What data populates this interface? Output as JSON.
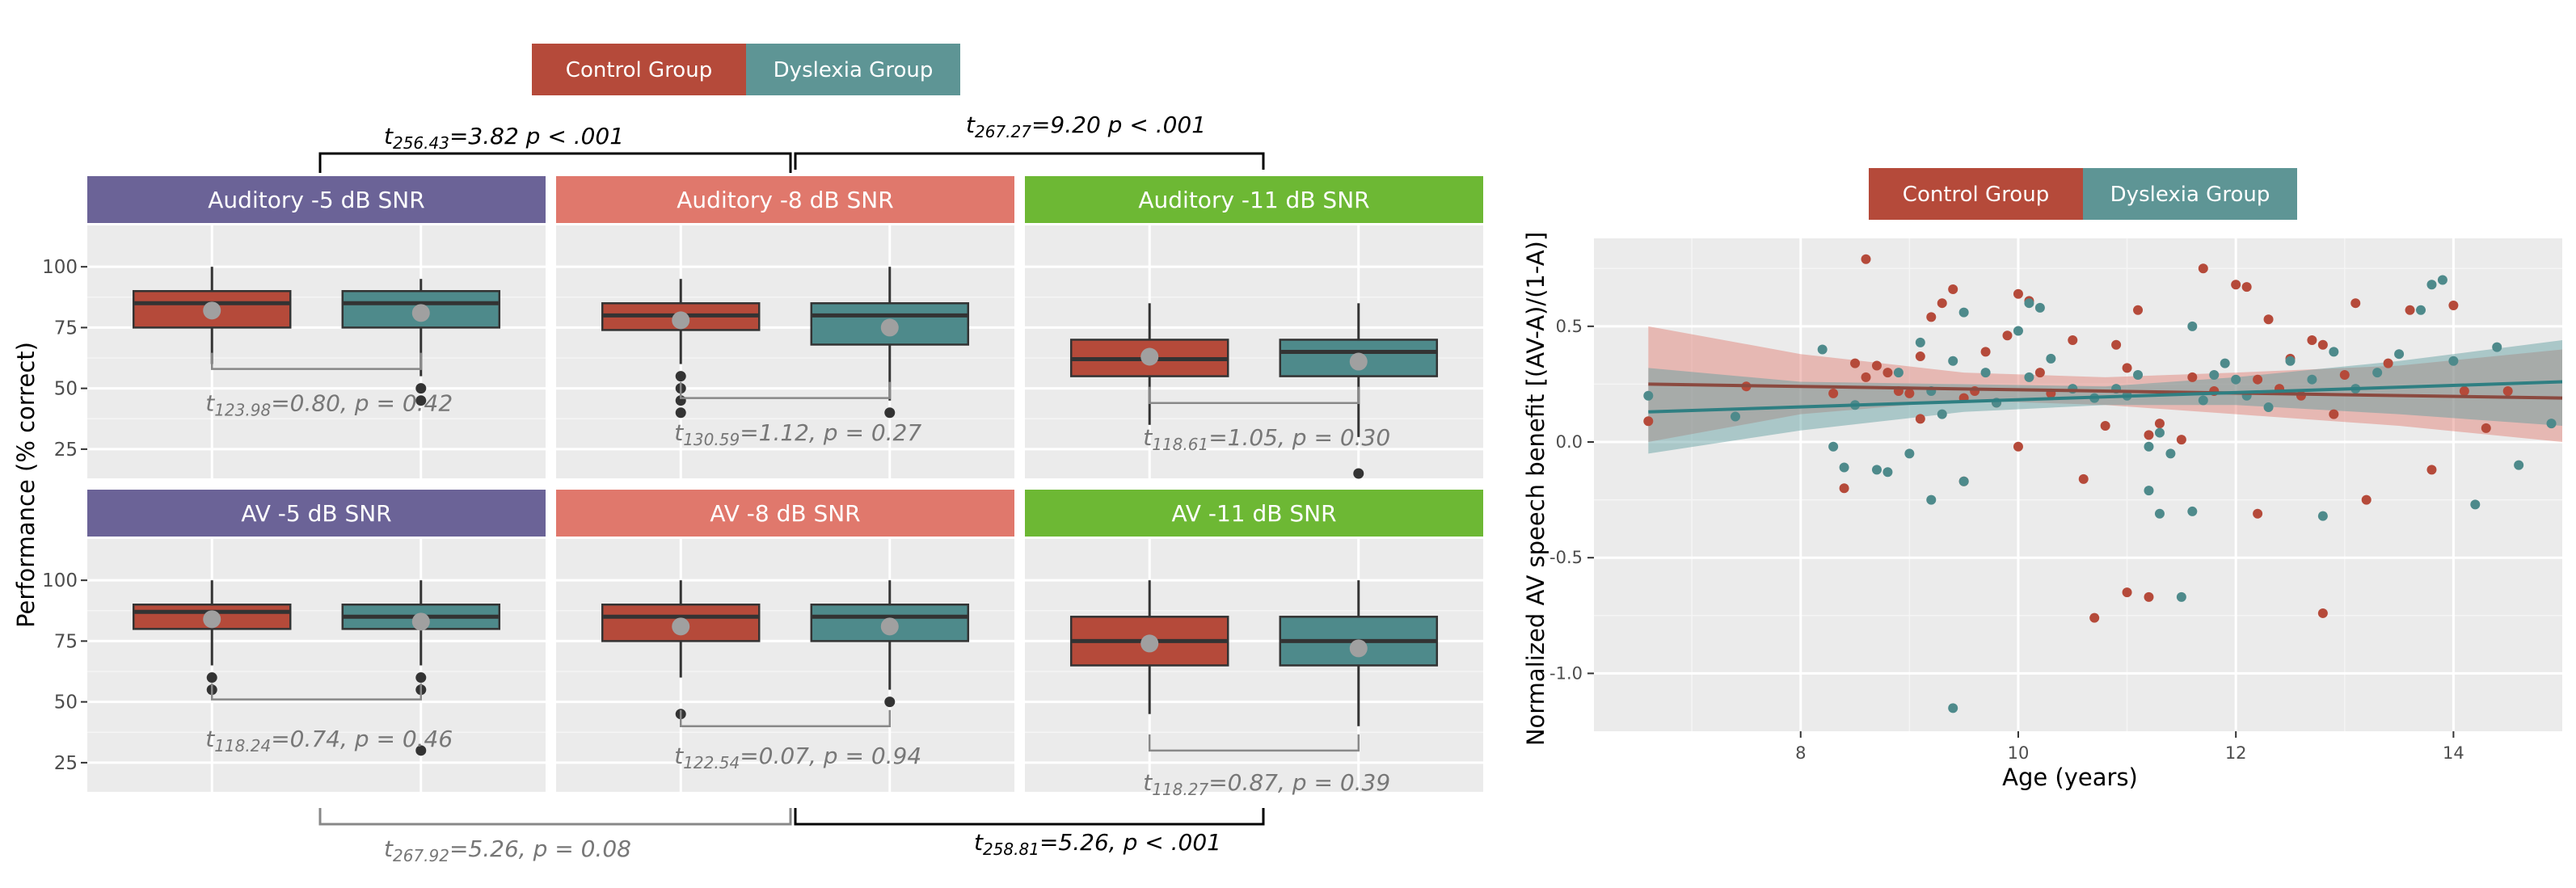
{
  "legend": {
    "left": {
      "items": [
        {
          "label": "Control Group",
          "color": "#b54a3a"
        },
        {
          "label": "Dyslexia Group",
          "color": "#5e9595"
        }
      ]
    },
    "right": {
      "items": [
        {
          "label": "Control Group",
          "color": "#b54a3a"
        },
        {
          "label": "Dyslexia Group",
          "color": "#5e9595"
        }
      ]
    }
  },
  "colors": {
    "control_box": "#b54a3a",
    "dyslexia_box": "#4e8a8b",
    "panel_bg": "#ebebeb",
    "grid": "#ffffff",
    "mean_marker": "#a0a0a0",
    "auditory5": "#6b6397",
    "auditory8": "#e0786c",
    "auditory11": "#6db834"
  },
  "chart_data": [
    {
      "type": "box",
      "ylabel": "Performance (% correct)",
      "ylim": [
        13,
        117
      ],
      "yticks": [
        25,
        50,
        75,
        100
      ],
      "panels": [
        {
          "strip": "Auditory -5 dB SNR",
          "color": "#6b6397",
          "row": 0,
          "col": 0,
          "groups": [
            {
              "group": "Control Group",
              "q1": 75,
              "median": 85,
              "q3": 90,
              "lower": 60,
              "upper": 100,
              "mean": 82,
              "outliers": []
            },
            {
              "group": "Dyslexia Group",
              "q1": 75,
              "median": 85,
              "q3": 90,
              "lower": 55,
              "upper": 95,
              "mean": 81,
              "outliers": [
                50,
                45
              ]
            }
          ]
        },
        {
          "strip": "Auditory -8 dB SNR",
          "color": "#e0786c",
          "row": 0,
          "col": 1,
          "groups": [
            {
              "group": "Control Group",
              "q1": 74,
              "median": 80,
              "q3": 85,
              "lower": 60,
              "upper": 95,
              "mean": 78,
              "outliers": [
                55,
                50,
                45,
                40
              ]
            },
            {
              "group": "Dyslexia Group",
              "q1": 68,
              "median": 80,
              "q3": 85,
              "lower": 45,
              "upper": 100,
              "mean": 75,
              "outliers": [
                40
              ]
            }
          ]
        },
        {
          "strip": "Auditory -11 dB SNR",
          "color": "#6db834",
          "row": 0,
          "col": 2,
          "groups": [
            {
              "group": "Control Group",
              "q1": 55,
              "median": 62,
              "q3": 70,
              "lower": 35,
              "upper": 85,
              "mean": 63,
              "outliers": []
            },
            {
              "group": "Dyslexia Group",
              "q1": 55,
              "median": 65,
              "q3": 70,
              "lower": 30,
              "upper": 85,
              "mean": 61,
              "outliers": [
                15
              ]
            }
          ]
        },
        {
          "strip": "AV  -5 dB SNR",
          "color": "#6b6397",
          "row": 1,
          "col": 0,
          "groups": [
            {
              "group": "Control Group",
              "q1": 80,
              "median": 87,
              "q3": 90,
              "lower": 65,
              "upper": 100,
              "mean": 84,
              "outliers": [
                60,
                55
              ]
            },
            {
              "group": "Dyslexia Group",
              "q1": 80,
              "median": 85,
              "q3": 90,
              "lower": 65,
              "upper": 100,
              "mean": 83,
              "outliers": [
                60,
                55,
                30
              ]
            }
          ]
        },
        {
          "strip": "AV  -8 dB SNR",
          "color": "#e0786c",
          "row": 1,
          "col": 1,
          "groups": [
            {
              "group": "Control Group",
              "q1": 75,
              "median": 85,
              "q3": 90,
              "lower": 60,
              "upper": 100,
              "mean": 81,
              "outliers": [
                45
              ]
            },
            {
              "group": "Dyslexia Group",
              "q1": 75,
              "median": 85,
              "q3": 90,
              "lower": 55,
              "upper": 100,
              "mean": 81,
              "outliers": [
                50
              ]
            }
          ]
        },
        {
          "strip": "AV  -11 dB SNR",
          "color": "#6db834",
          "row": 1,
          "col": 2,
          "groups": [
            {
              "group": "Control Group",
              "q1": 65,
              "median": 75,
              "q3": 85,
              "lower": 45,
              "upper": 100,
              "mean": 74,
              "outliers": []
            },
            {
              "group": "Dyslexia Group",
              "q1": 65,
              "median": 75,
              "q3": 85,
              "lower": 40,
              "upper": 100,
              "mean": 72,
              "outliers": []
            }
          ]
        }
      ],
      "annotations": [
        {
          "sub": "123.98",
          "text": "=0.80, p = 0.42",
          "style": "gray",
          "panel": 0,
          "y": 44,
          "bracket_y": 58
        },
        {
          "sub": "130.59",
          "text": "=1.12, p = 0.27",
          "style": "gray",
          "panel": 1,
          "y": 32,
          "bracket_y": 46
        },
        {
          "sub": "118.61",
          "text": "=1.05, p = 0.30",
          "style": "gray",
          "panel": 2,
          "y": 30,
          "bracket_y": 44
        },
        {
          "sub": "118.24",
          "text": "=0.74, p = 0.46",
          "style": "gray",
          "panel": 3,
          "y": 35,
          "bracket_y": 51
        },
        {
          "sub": "122.54",
          "text": "=0.07, p = 0.94",
          "style": "gray",
          "panel": 4,
          "y": 28,
          "bracket_y": 40
        },
        {
          "sub": "118.27",
          "text": "=0.87, p = 0.39",
          "style": "gray",
          "panel": 5,
          "y": 17,
          "bracket_y": 30
        }
      ],
      "comparisons": [
        {
          "sub": "256.43",
          "text": "=3.82 p < .001",
          "style": "black",
          "position": "top",
          "between": [
            0,
            1
          ]
        },
        {
          "sub": "267.27",
          "text": "=9.20 p < .001",
          "style": "black",
          "position": "top",
          "between": [
            1,
            2
          ]
        },
        {
          "sub": "267.92",
          "text": "=5.26, p = 0.08",
          "style": "gray",
          "position": "bottom",
          "between": [
            0,
            1
          ]
        },
        {
          "sub": "258.81",
          "text": "=5.26, p < .001",
          "style": "black",
          "position": "bottom",
          "between": [
            1,
            2
          ]
        }
      ]
    },
    {
      "type": "scatter",
      "xlabel": "Age (years)",
      "ylabel": "Normalized AV speech benefit [(AV-A)/(1-A)]",
      "xlim": [
        6.1,
        15.0
      ],
      "ylim": [
        -1.25,
        0.88
      ],
      "xticks": [
        8,
        10,
        12,
        14
      ],
      "yticks": [
        -1.0,
        -0.5,
        0.0,
        0.5
      ],
      "series": [
        {
          "name": "Control Group",
          "color": "#b54a3a",
          "fit": {
            "x": [
              6.6,
              15.0
            ],
            "y": [
              0.25,
              0.19
            ]
          },
          "band": {
            "x": [
              6.6,
              8.0,
              9.5,
              10.8,
              12.0,
              13.5,
              15.0
            ],
            "lower": [
              0.0,
              0.12,
              0.18,
              0.16,
              0.12,
              0.07,
              0.0
            ],
            "upper": [
              0.5,
              0.38,
              0.3,
              0.28,
              0.3,
              0.33,
              0.4
            ]
          },
          "x": [
            6.6,
            7.5,
            8.3,
            8.4,
            8.5,
            8.6,
            8.6,
            8.7,
            8.8,
            8.9,
            9.0,
            9.1,
            9.1,
            9.2,
            9.3,
            9.4,
            9.5,
            9.5,
            9.6,
            9.7,
            9.8,
            9.9,
            10.0,
            10.0,
            10.1,
            10.2,
            10.3,
            10.5,
            10.6,
            10.7,
            10.8,
            10.9,
            11.0,
            11.0,
            11.1,
            11.2,
            11.2,
            11.3,
            11.5,
            11.6,
            11.7,
            11.8,
            12.0,
            12.1,
            12.2,
            12.2,
            12.3,
            12.4,
            12.5,
            12.6,
            12.7,
            12.8,
            12.8,
            12.9,
            13.0,
            13.1,
            13.2,
            13.4,
            13.6,
            13.8,
            14.0,
            14.1,
            14.3,
            14.5
          ],
          "y": [
            0.09,
            0.24,
            0.21,
            -0.2,
            0.34,
            0.28,
            0.79,
            0.33,
            0.3,
            0.22,
            0.21,
            0.37,
            0.1,
            0.54,
            0.6,
            0.66,
            -0.17,
            0.19,
            0.22,
            0.39,
            0.17,
            0.46,
            0.64,
            -0.02,
            0.61,
            0.3,
            0.21,
            0.44,
            -0.16,
            -0.76,
            0.07,
            0.42,
            -0.65,
            0.32,
            0.57,
            0.03,
            -0.67,
            0.08,
            0.01,
            0.28,
            0.75,
            0.22,
            0.68,
            0.67,
            0.27,
            -0.31,
            0.53,
            0.23,
            0.36,
            0.2,
            0.44,
            0.42,
            -0.74,
            0.12,
            0.29,
            0.6,
            -0.25,
            0.34,
            0.57,
            -0.12,
            0.59,
            0.22,
            0.06,
            0.22
          ]
        },
        {
          "name": "Dyslexia Group",
          "color": "#4e8a8b",
          "fit": {
            "x": [
              6.6,
              15.0
            ],
            "y": [
              0.13,
              0.26
            ]
          },
          "band": {
            "x": [
              6.6,
              8.0,
              9.5,
              10.8,
              12.0,
              13.5,
              15.0
            ],
            "lower": [
              -0.05,
              0.05,
              0.13,
              0.16,
              0.16,
              0.12,
              0.07
            ],
            "upper": [
              0.32,
              0.26,
              0.25,
              0.24,
              0.28,
              0.35,
              0.44
            ]
          },
          "x": [
            6.6,
            7.4,
            8.2,
            8.3,
            8.4,
            8.5,
            8.7,
            8.8,
            8.9,
            9.0,
            9.1,
            9.2,
            9.2,
            9.3,
            9.4,
            9.4,
            9.5,
            9.5,
            9.7,
            9.8,
            10.0,
            10.1,
            10.1,
            10.2,
            10.3,
            10.5,
            10.7,
            10.9,
            11.0,
            11.1,
            11.2,
            11.2,
            11.3,
            11.3,
            11.4,
            11.5,
            11.6,
            11.6,
            11.7,
            11.8,
            11.9,
            12.0,
            12.1,
            12.3,
            12.5,
            12.7,
            12.8,
            12.9,
            13.1,
            13.3,
            13.5,
            13.7,
            13.8,
            13.9,
            14.0,
            14.2,
            14.4,
            14.6,
            14.9
          ],
          "y": [
            0.2,
            0.11,
            0.4,
            -0.02,
            -0.11,
            0.16,
            -0.12,
            -0.13,
            0.3,
            -0.05,
            0.43,
            -0.25,
            0.22,
            0.12,
            0.35,
            -1.15,
            0.56,
            -0.17,
            0.3,
            0.17,
            0.48,
            0.6,
            0.28,
            0.58,
            0.36,
            0.23,
            0.19,
            0.23,
            0.2,
            0.29,
            -0.02,
            -0.21,
            0.04,
            -0.31,
            -0.05,
            -0.67,
            0.5,
            -0.3,
            0.18,
            0.29,
            0.34,
            0.27,
            0.2,
            0.15,
            0.35,
            0.27,
            -0.32,
            0.39,
            0.23,
            0.3,
            0.38,
            0.57,
            0.68,
            0.7,
            0.35,
            -0.27,
            0.41,
            -0.1,
            0.08
          ]
        }
      ]
    }
  ]
}
